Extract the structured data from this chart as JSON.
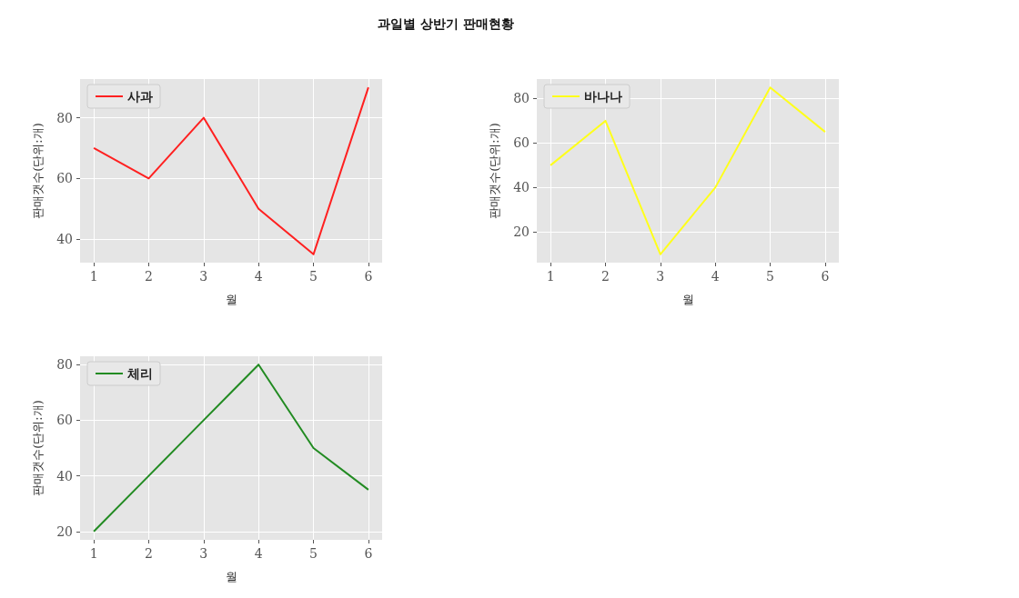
{
  "chart_data": [
    {
      "type": "line",
      "title": "과일별 상반기 판매현황",
      "xlabel": "월",
      "ylabel": "판매갯수(단위:개)",
      "x": [
        1,
        2,
        3,
        4,
        5,
        6
      ],
      "series": [
        {
          "name": "사과",
          "color": "#ff2020",
          "values": [
            70,
            60,
            80,
            50,
            35,
            90
          ]
        }
      ],
      "xlim": [
        0.75,
        6.25
      ],
      "xticks": [
        1,
        2,
        3,
        4,
        5,
        6
      ],
      "ylim": [
        32.25,
        92.75
      ],
      "yticks": [
        40,
        60,
        80
      ],
      "grid": true,
      "legend": "top left"
    },
    {
      "type": "line",
      "xlabel": "월",
      "ylabel": "판매갯수(단위:개)",
      "x": [
        1,
        2,
        3,
        4,
        5,
        6
      ],
      "series": [
        {
          "name": "바나나",
          "color": "#ffff1a",
          "values": [
            50,
            70,
            10,
            40,
            85,
            65
          ]
        }
      ],
      "xlim": [
        0.75,
        6.25
      ],
      "xticks": [
        1,
        2,
        3,
        4,
        5,
        6
      ],
      "ylim": [
        6.25,
        88.75
      ],
      "yticks": [
        20,
        40,
        60,
        80
      ],
      "grid": true,
      "legend": "top left"
    },
    {
      "type": "line",
      "xlabel": "월",
      "ylabel": "판매갯수(단위:개)",
      "x": [
        1,
        2,
        3,
        4,
        5,
        6
      ],
      "series": [
        {
          "name": "체리",
          "color": "#228b22",
          "values": [
            20,
            40,
            60,
            80,
            50,
            35
          ]
        }
      ],
      "xlim": [
        0.75,
        6.25
      ],
      "xticks": [
        1,
        2,
        3,
        4,
        5,
        6
      ],
      "ylim": [
        17,
        83
      ],
      "yticks": [
        20,
        40,
        60,
        80
      ],
      "grid": true,
      "legend": "top left"
    }
  ]
}
